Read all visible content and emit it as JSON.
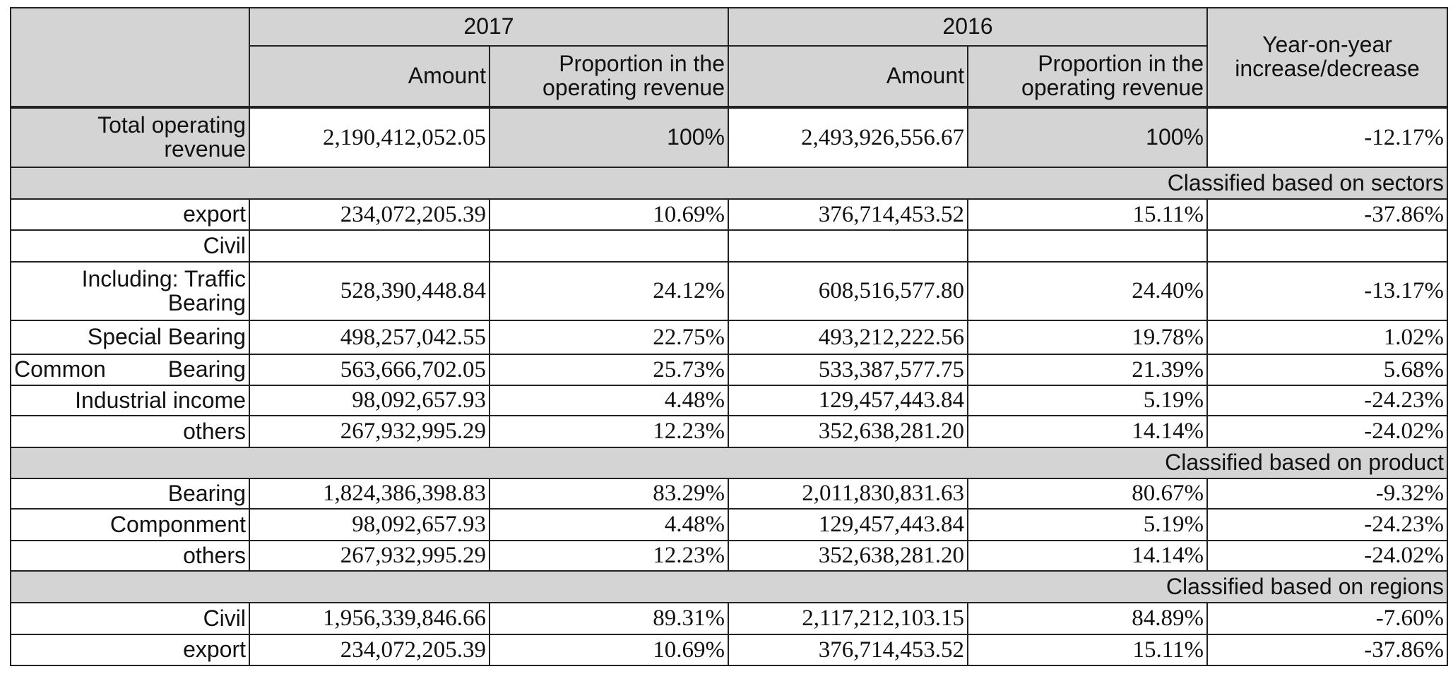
{
  "header": {
    "year_a": "2017",
    "year_b": "2016",
    "yoy": "Year-on-year increase/decrease",
    "amount": "Amount",
    "proportion": "Proportion in the operating revenue"
  },
  "total": {
    "label": "Total operating revenue",
    "amount_2017": "2,190,412,052.05",
    "prop_2017": "100%",
    "amount_2016": "2,493,926,556.67",
    "prop_2016": "100%",
    "yoy": "-12.17%"
  },
  "sections": [
    {
      "title": "Classified based on sectors",
      "rows": [
        {
          "label": "export",
          "amount_2017": "234,072,205.39",
          "prop_2017": "10.69%",
          "amount_2016": "376,714,453.52",
          "prop_2016": "15.11%",
          "yoy": "-37.86%"
        },
        {
          "label": "Civil",
          "amount_2017": "",
          "prop_2017": "",
          "amount_2016": "",
          "prop_2016": "",
          "yoy": ""
        },
        {
          "label": "Including: Traffic Bearing",
          "amount_2017": "528,390,448.84",
          "prop_2017": "24.12%",
          "amount_2016": "608,516,577.80",
          "prop_2016": "24.40%",
          "yoy": "-13.17%"
        },
        {
          "label": "Special Bearing",
          "amount_2017": "498,257,042.55",
          "prop_2017": "22.75%",
          "amount_2016": "493,212,222.56",
          "prop_2016": "19.78%",
          "yoy": "1.02%"
        },
        {
          "label": "Common Bearing",
          "amount_2017": "563,666,702.05",
          "prop_2017": "25.73%",
          "amount_2016": "533,387,577.75",
          "prop_2016": "21.39%",
          "yoy": "5.68%"
        },
        {
          "label": "Industrial income",
          "amount_2017": "98,092,657.93",
          "prop_2017": "4.48%",
          "amount_2016": "129,457,443.84",
          "prop_2016": "5.19%",
          "yoy": "-24.23%"
        },
        {
          "label": "others",
          "amount_2017": "267,932,995.29",
          "prop_2017": "12.23%",
          "amount_2016": "352,638,281.20",
          "prop_2016": "14.14%",
          "yoy": "-24.02%"
        }
      ]
    },
    {
      "title": "Classified based on product",
      "rows": [
        {
          "label": "Bearing",
          "amount_2017": "1,824,386,398.83",
          "prop_2017": "83.29%",
          "amount_2016": "2,011,830,831.63",
          "prop_2016": "80.67%",
          "yoy": "-9.32%"
        },
        {
          "label": "Componment",
          "amount_2017": "98,092,657.93",
          "prop_2017": "4.48%",
          "amount_2016": "129,457,443.84",
          "prop_2016": "5.19%",
          "yoy": "-24.23%"
        },
        {
          "label": "others",
          "amount_2017": "267,932,995.29",
          "prop_2017": "12.23%",
          "amount_2016": "352,638,281.20",
          "prop_2016": "14.14%",
          "yoy": "-24.02%"
        }
      ]
    },
    {
      "title": "Classified based on regions",
      "rows": [
        {
          "label": "Civil",
          "amount_2017": "1,956,339,846.66",
          "prop_2017": "89.31%",
          "amount_2016": "2,117,212,103.15",
          "prop_2016": "84.89%",
          "yoy": "-7.60%"
        },
        {
          "label": "export",
          "amount_2017": "234,072,205.39",
          "prop_2017": "10.69%",
          "amount_2016": "376,714,453.52",
          "prop_2016": "15.11%",
          "yoy": "-37.86%"
        }
      ]
    }
  ],
  "colors": {
    "header_gray": "#d4d4d4",
    "border": "#222222"
  }
}
